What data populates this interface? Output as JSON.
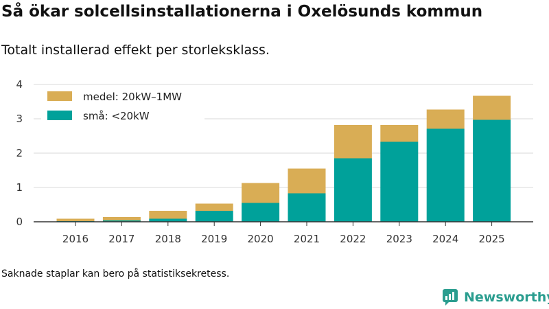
{
  "header": {
    "title": "Så ökar solcellsinstallationerna i Oxelösunds kommun",
    "subtitle": "Totalt installerad effekt per storleksklass."
  },
  "footer": {
    "note": "Saknade staplar kan bero på statistiksekretess.",
    "brand": "Newsworthy"
  },
  "chart_data": {
    "type": "bar",
    "stacked": true,
    "title": "Så ökar solcellsinstallationerna i Oxelösunds kommun",
    "subtitle": "Totalt installerad effekt per storleksklass.",
    "xlabel": "",
    "ylabel": "",
    "ylim": [
      0,
      4
    ],
    "yticks": [
      0,
      1,
      2,
      3,
      4
    ],
    "grid": true,
    "legend_position": "top-left",
    "categories": [
      "2016",
      "2017",
      "2018",
      "2019",
      "2020",
      "2021",
      "2022",
      "2023",
      "2024",
      "2025"
    ],
    "series": [
      {
        "name": "små: <20kW",
        "color": "#00a19a",
        "values": [
          0.02,
          0.04,
          0.09,
          0.32,
          0.55,
          0.83,
          1.85,
          2.33,
          2.71,
          2.97
        ]
      },
      {
        "name": "medel: 20kW–1MW",
        "color": "#d9ad55",
        "values": [
          0.07,
          0.1,
          0.23,
          0.21,
          0.58,
          0.72,
          0.97,
          0.49,
          0.56,
          0.7
        ]
      }
    ]
  }
}
